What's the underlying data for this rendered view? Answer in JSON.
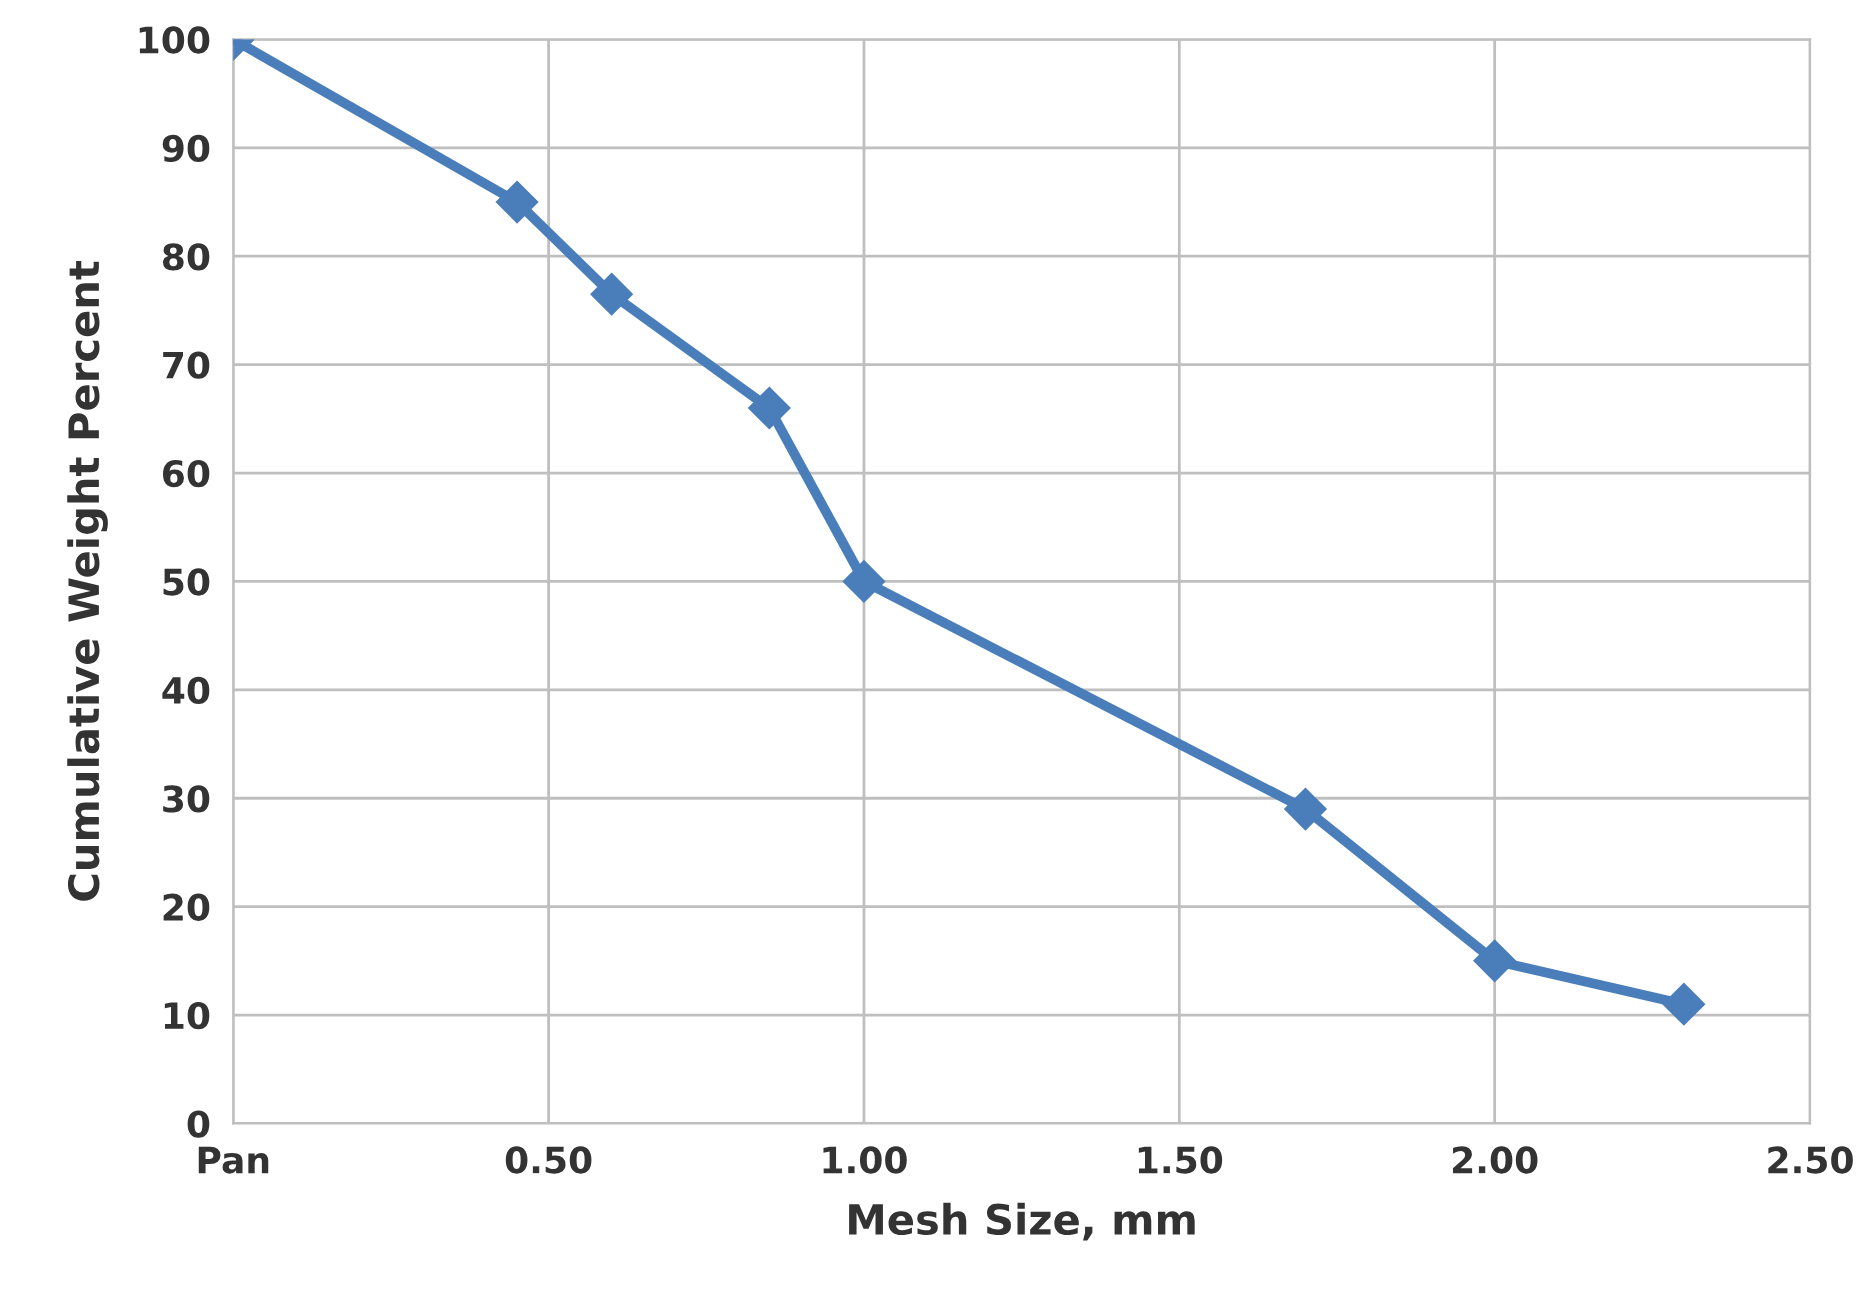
{
  "chart_data": {
    "type": "line",
    "xlabel": "Mesh Size, mm",
    "ylabel": "Cumulative Weight Percent",
    "series": [
      {
        "color": "#4a7ebb",
        "x": [
          0,
          0.45,
          0.6,
          0.85,
          1.0,
          1.7,
          2.0,
          2.3
        ],
        "values": [
          100,
          85,
          76.5,
          66,
          50,
          29,
          15,
          11
        ]
      }
    ],
    "xlim": [
      0,
      2.5
    ],
    "xticks": [
      {
        "value": 0,
        "label": "Pan"
      },
      {
        "value": 0.5,
        "label": "0.50"
      },
      {
        "value": 1.0,
        "label": "1.00"
      },
      {
        "value": 1.5,
        "label": "1.50"
      },
      {
        "value": 2.0,
        "label": "2.00"
      },
      {
        "value": 2.5,
        "label": "2.50"
      }
    ],
    "ylim": [
      0,
      100
    ],
    "yticks": [
      0,
      10,
      20,
      30,
      40,
      50,
      60,
      70,
      80,
      90,
      100
    ],
    "grid": true,
    "marker": "diamond",
    "line_style": "solid"
  }
}
